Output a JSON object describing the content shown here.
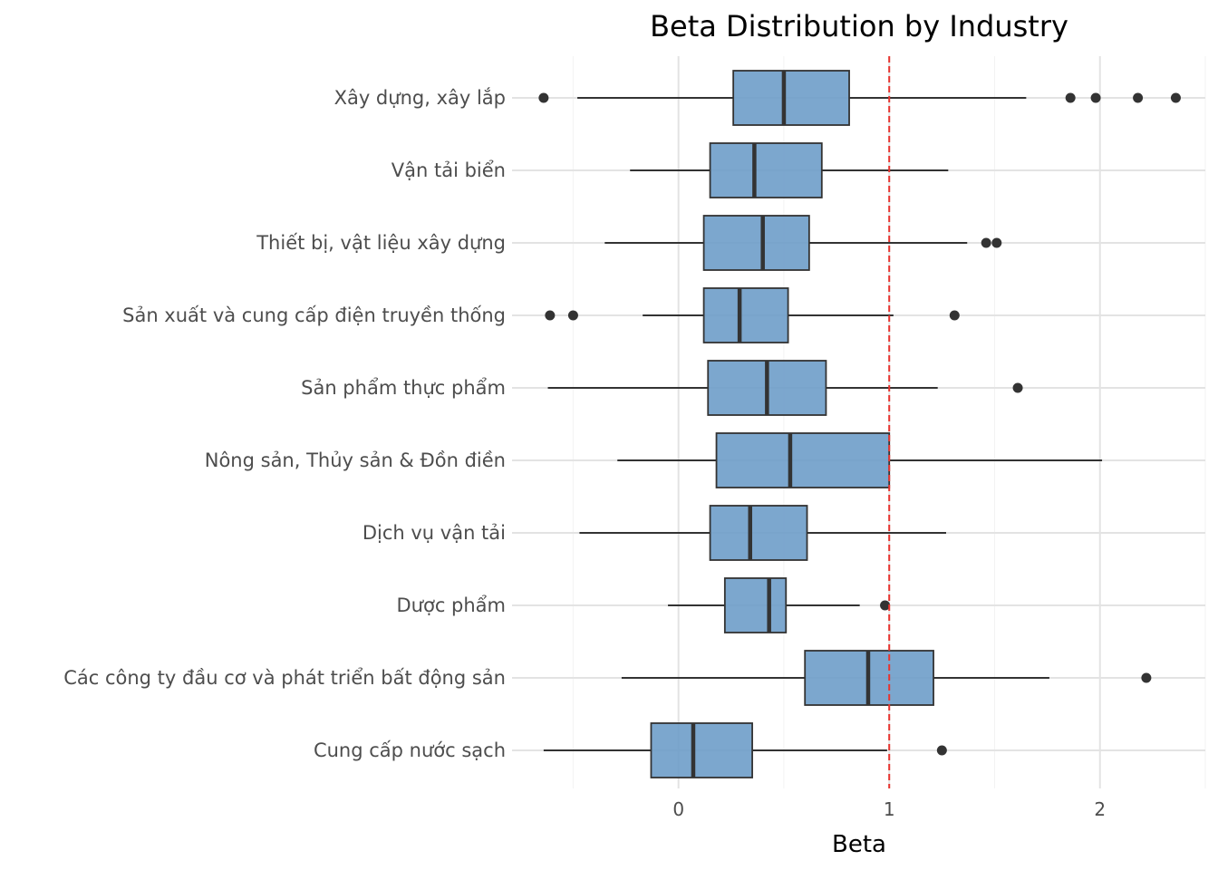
{
  "chart_data": {
    "type": "boxplot",
    "orientation": "horizontal",
    "title": "Beta Distribution by Industry",
    "xlabel": "Beta",
    "ylabel": "",
    "xlim": [
      -0.79,
      2.5
    ],
    "xticks": [
      0,
      1,
      2
    ],
    "grid": true,
    "reference_line": {
      "x": 1,
      "color": "#e8332e",
      "style": "dashed"
    },
    "box_color": "#6a9bc7",
    "categories": [
      "Xây dựng, xây lắp",
      "Vận tải biển",
      "Thiết bị, vật liệu xây dựng",
      "Sản xuất và cung cấp điện truyền thống",
      "Sản phẩm thực phẩm",
      "Nông sản, Thủy sản & Đồn điền",
      "Dịch vụ vận tải",
      "Dược phẩm",
      "Các công ty đầu cơ và phát triển bất động sản",
      "Cung cấp nước sạch"
    ],
    "boxes": [
      {
        "whisker_low": -0.48,
        "q1": 0.26,
        "median": 0.5,
        "q3": 0.81,
        "whisker_high": 1.65,
        "outliers": [
          -0.64,
          1.86,
          1.98,
          2.18,
          2.36
        ]
      },
      {
        "whisker_low": -0.23,
        "q1": 0.15,
        "median": 0.36,
        "q3": 0.68,
        "whisker_high": 1.28,
        "outliers": []
      },
      {
        "whisker_low": -0.35,
        "q1": 0.12,
        "median": 0.4,
        "q3": 0.62,
        "whisker_high": 1.37,
        "outliers": [
          1.46,
          1.51
        ]
      },
      {
        "whisker_low": -0.17,
        "q1": 0.12,
        "median": 0.29,
        "q3": 0.52,
        "whisker_high": 1.02,
        "outliers": [
          -0.61,
          -0.5,
          1.31
        ]
      },
      {
        "whisker_low": -0.62,
        "q1": 0.14,
        "median": 0.42,
        "q3": 0.7,
        "whisker_high": 1.23,
        "outliers": [
          1.61
        ]
      },
      {
        "whisker_low": -0.29,
        "q1": 0.18,
        "median": 0.53,
        "q3": 1.0,
        "whisker_high": 2.01,
        "outliers": []
      },
      {
        "whisker_low": -0.47,
        "q1": 0.15,
        "median": 0.34,
        "q3": 0.61,
        "whisker_high": 1.27,
        "outliers": []
      },
      {
        "whisker_low": -0.05,
        "q1": 0.22,
        "median": 0.43,
        "q3": 0.51,
        "whisker_high": 0.86,
        "outliers": [
          0.98
        ]
      },
      {
        "whisker_low": -0.27,
        "q1": 0.6,
        "median": 0.9,
        "q3": 1.21,
        "whisker_high": 1.76,
        "outliers": [
          2.22
        ]
      },
      {
        "whisker_low": -0.64,
        "q1": -0.13,
        "median": 0.07,
        "q3": 0.35,
        "whisker_high": 0.99,
        "outliers": [
          1.25
        ]
      }
    ]
  }
}
